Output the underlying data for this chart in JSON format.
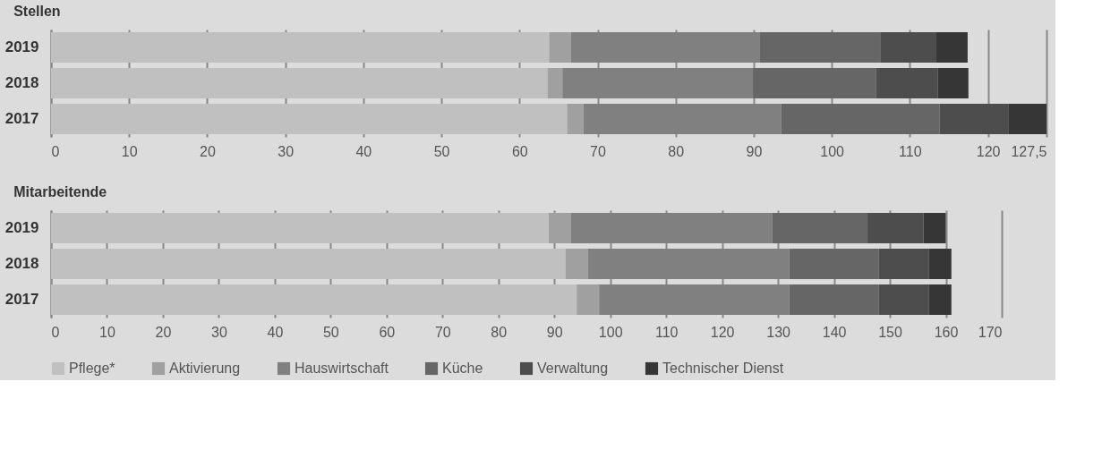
{
  "chart_data": [
    {
      "type": "bar",
      "orientation": "horizontal",
      "stacked": true,
      "title": "Stellen",
      "categories": [
        "2019",
        "2018",
        "2017"
      ],
      "series": [
        {
          "name": "Pflege*",
          "color": "#c0c0c0",
          "values": [
            63.8,
            63.6,
            66.1
          ]
        },
        {
          "name": "Aktivierung",
          "color": "#a0a0a0",
          "values": [
            2.8,
            1.9,
            2.1
          ]
        },
        {
          "name": "Hauswirtschaft",
          "color": "#808080",
          "values": [
            24.2,
            24.4,
            25.3
          ]
        },
        {
          "name": "Küche",
          "color": "#666666",
          "values": [
            15.4,
            15.8,
            20.3
          ]
        },
        {
          "name": "Verwaltung",
          "color": "#4d4d4d",
          "values": [
            7.2,
            7.9,
            8.8
          ]
        },
        {
          "name": "Technischer Dienst",
          "color": "#363636",
          "values": [
            4.0,
            3.9,
            4.9
          ]
        }
      ],
      "xlim": [
        0,
        127.5
      ],
      "xticks": [
        0,
        10,
        20,
        30,
        40,
        50,
        60,
        70,
        80,
        90,
        100,
        110,
        120,
        {
          "value": 127.5,
          "label": "127,5"
        }
      ],
      "grid": true,
      "legend": "bottom"
    },
    {
      "type": "bar",
      "orientation": "horizontal",
      "stacked": true,
      "title": "Mitarbeitende",
      "categories": [
        "2019",
        "2018",
        "2017"
      ],
      "series": [
        {
          "name": "Pflege*",
          "color": "#c0c0c0",
          "values": [
            89,
            92,
            94
          ]
        },
        {
          "name": "Aktivierung",
          "color": "#a0a0a0",
          "values": [
            4,
            4,
            4
          ]
        },
        {
          "name": "Hauswirtschaft",
          "color": "#808080",
          "values": [
            36,
            36,
            34
          ]
        },
        {
          "name": "Küche",
          "color": "#666666",
          "values": [
            17,
            16,
            16
          ]
        },
        {
          "name": "Verwaltung",
          "color": "#4d4d4d",
          "values": [
            10,
            9,
            9
          ]
        },
        {
          "name": "Technischer Dienst",
          "color": "#363636",
          "values": [
            4,
            4,
            4
          ]
        }
      ],
      "xlim": [
        0,
        170
      ],
      "xticks": [
        0,
        10,
        20,
        30,
        40,
        50,
        60,
        70,
        80,
        90,
        100,
        110,
        120,
        130,
        140,
        150,
        160,
        170
      ],
      "grid": true,
      "legend": "bottom"
    }
  ]
}
